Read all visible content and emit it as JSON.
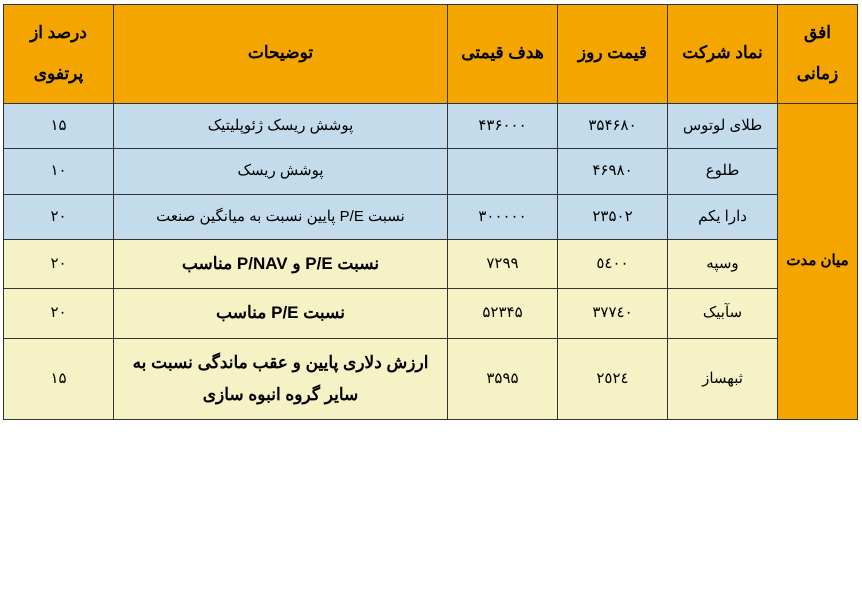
{
  "colors": {
    "header_bg": "#f5a500",
    "horizon_bg": "#f5a500",
    "row_blue": "#c3dbea",
    "row_cream": "#f5f2c5",
    "border": "#333333",
    "text": "#000000"
  },
  "headers": {
    "horizon": "افق زمانی",
    "symbol": "نماد شرکت",
    "day_price": "قیمت روز",
    "target_price": "هدف قیمتی",
    "description": "توضیحات",
    "pct_portfolio": "درصد از پرتفوی"
  },
  "horizon_label": "میان مدت",
  "rows": [
    {
      "variant": "blue",
      "symbol": "طلای لوتوس",
      "day_price": "۳۵۴۶۸۰",
      "target_price": "۴۳۶۰۰۰",
      "description": "پوشش ریسک ژئوپلیتیک",
      "pct": "۱۵",
      "desc_bold": false
    },
    {
      "variant": "blue",
      "symbol": "طلوع",
      "day_price": "۴۶۹۸۰",
      "target_price": "",
      "description": "پوشش ریسک",
      "pct": "۱۰",
      "desc_bold": false
    },
    {
      "variant": "blue",
      "symbol": "دارا یکم",
      "day_price": "۲۳۵۰۲",
      "target_price": "۳۰۰۰۰۰",
      "description": "نسبت P/E پایین نسبت به میانگین صنعت",
      "pct": "۲۰",
      "desc_bold": false
    },
    {
      "variant": "cream",
      "symbol": "وسپه",
      "day_price": "٥٤٠٠",
      "target_price": "۷۲۹۹",
      "description": "نسبت P/E و P/NAV مناسب",
      "pct": "۲۰",
      "desc_bold": true
    },
    {
      "variant": "cream",
      "symbol": "سآبیک",
      "day_price": "٣٧٧٤٠",
      "target_price": "۵۲۳۴۵",
      "description": "نسبت P/E مناسب",
      "pct": "۲۰",
      "desc_bold": true
    },
    {
      "variant": "cream",
      "symbol": "ثبهساز",
      "day_price": "٢٥٢٤",
      "target_price": "۳۵۹۵",
      "description": "ارزش دلاری پایین و عقب ماندگی نسبت به سایر گروه انبوه سازی",
      "pct": "۱۵",
      "desc_bold": true
    }
  ]
}
